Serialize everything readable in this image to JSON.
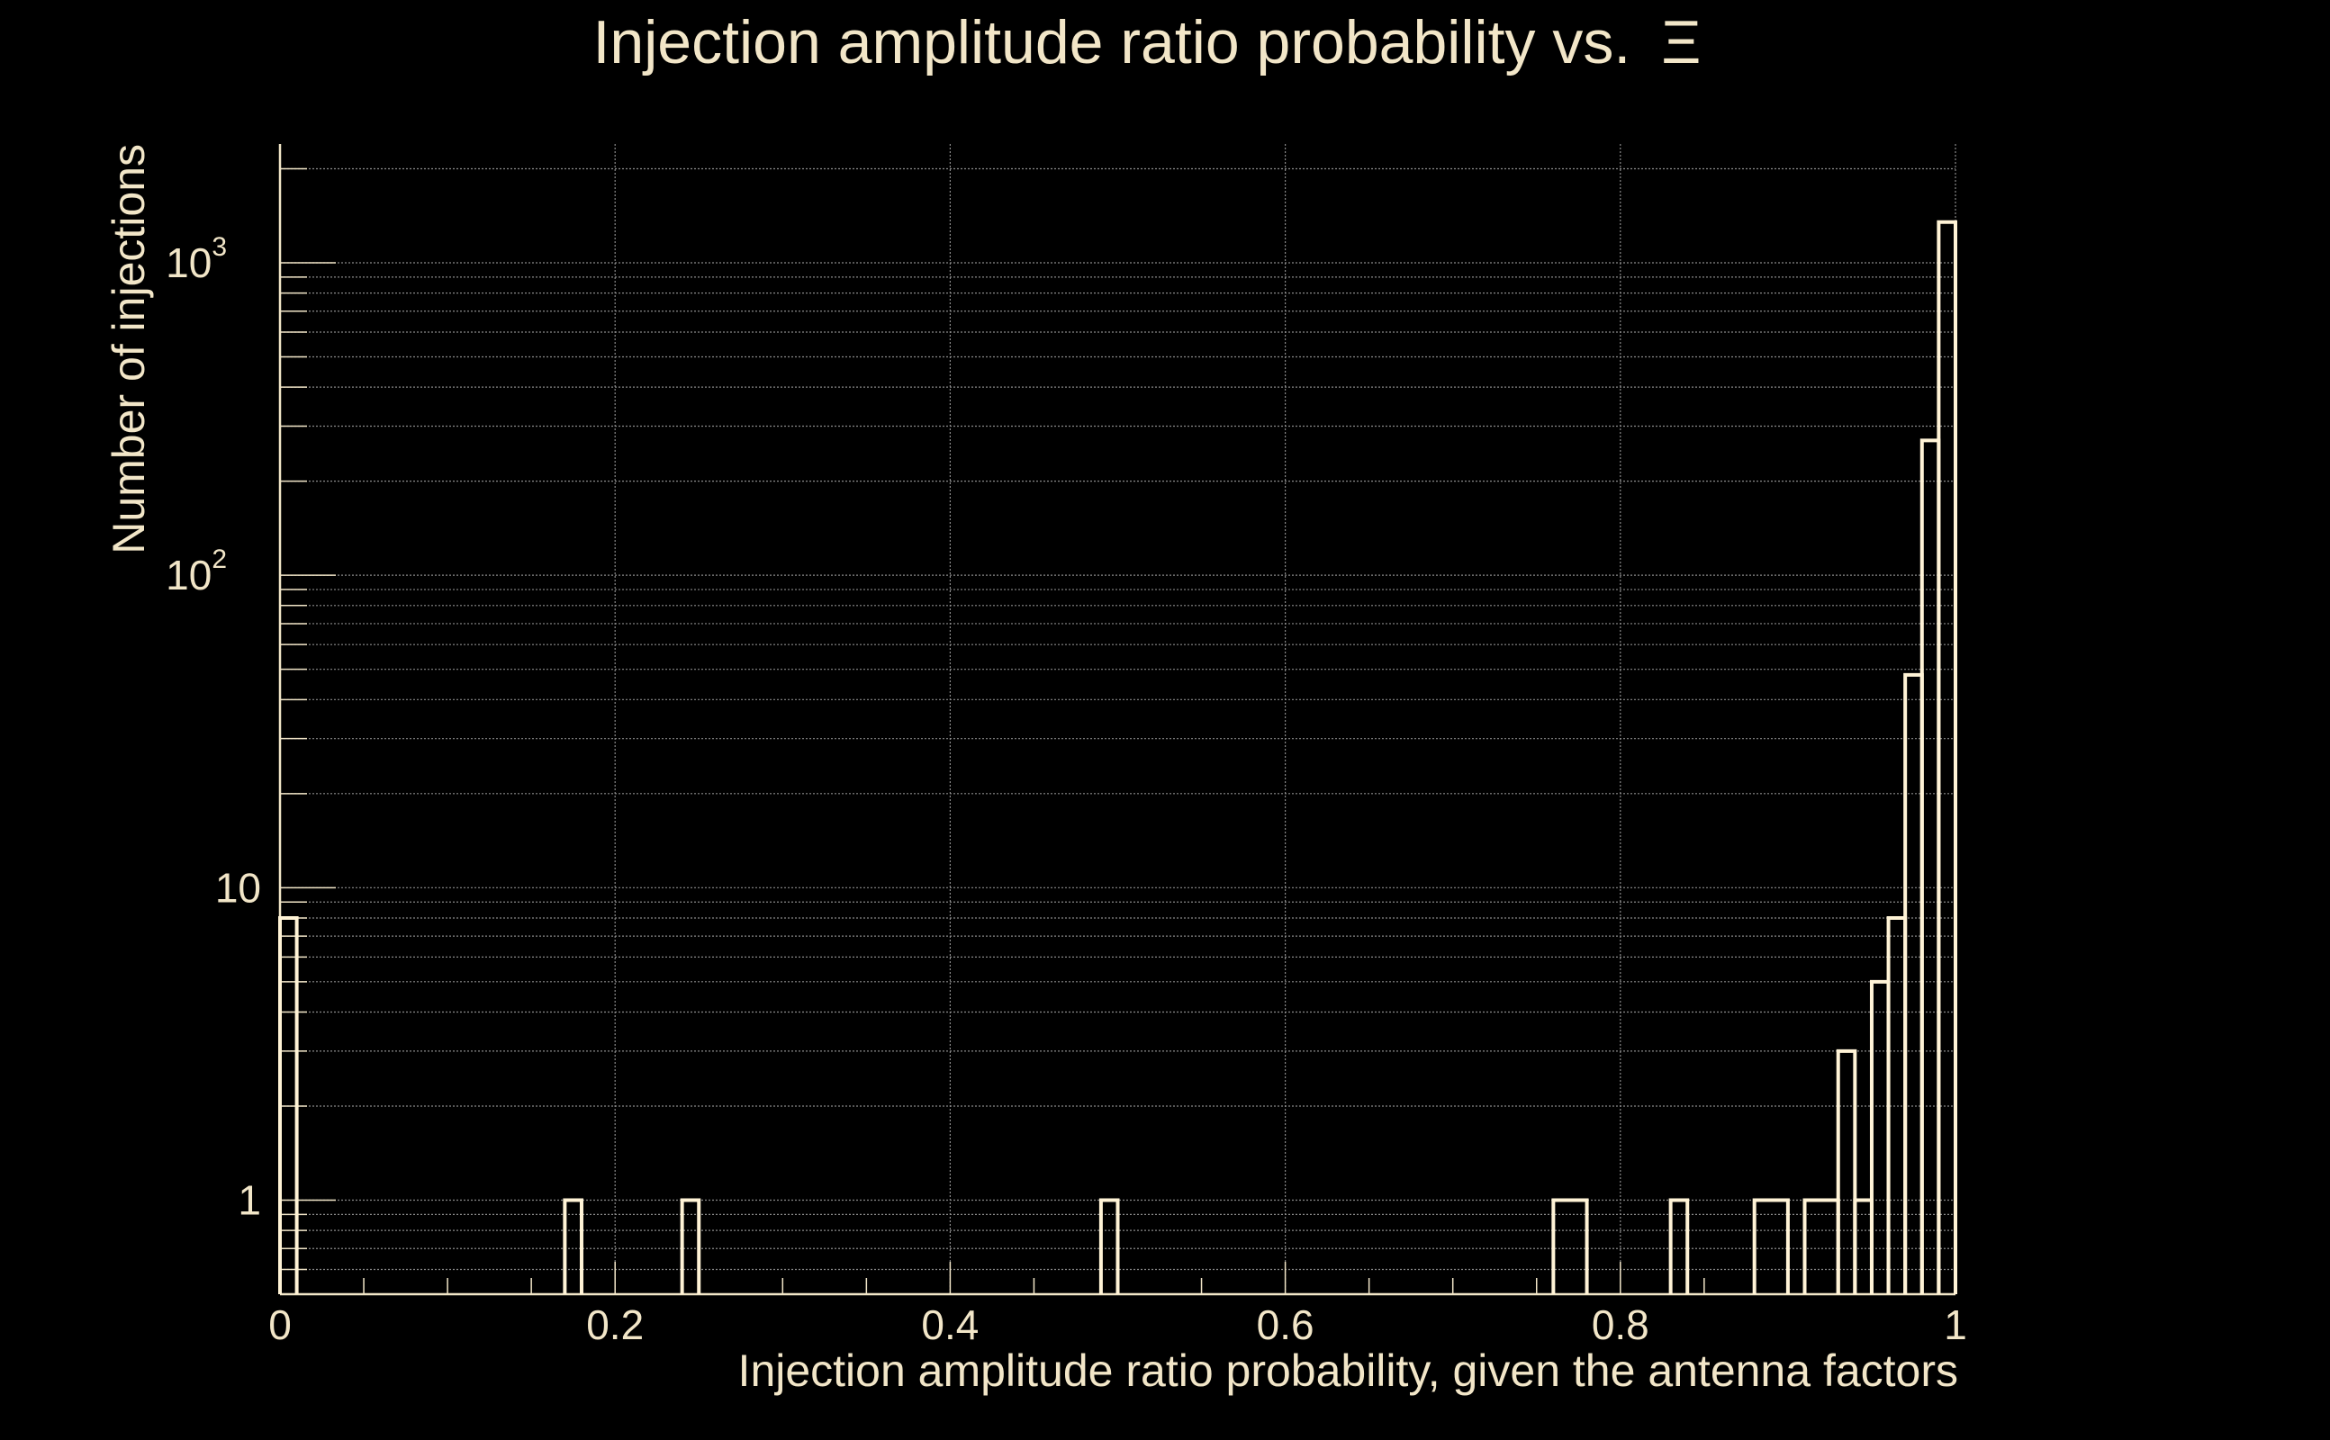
{
  "chart_data": {
    "type": "histogram",
    "title": "Injection amplitude ratio probability vs.",
    "title_symbol": "Ξ",
    "xlabel": "Injection amplitude ratio probability, given the antenna factors",
    "ylabel": "Number of injections",
    "xlim": [
      0,
      1
    ],
    "ylim": [
      0.5,
      2400
    ],
    "yscale": "log",
    "grid": true,
    "x_ticks": [
      {
        "value": 0,
        "label": "0"
      },
      {
        "value": 0.2,
        "label": "0.2"
      },
      {
        "value": 0.4,
        "label": "0.4"
      },
      {
        "value": 0.6,
        "label": "0.6"
      },
      {
        "value": 0.8,
        "label": "0.8"
      },
      {
        "value": 1,
        "label": "1"
      }
    ],
    "y_ticks": [
      {
        "value": 1,
        "base": "1",
        "sup": ""
      },
      {
        "value": 10,
        "base": "10",
        "sup": ""
      },
      {
        "value": 100,
        "base": "10",
        "sup": "2"
      },
      {
        "value": 1000,
        "base": "10",
        "sup": "3"
      }
    ],
    "bins": [
      {
        "x0": 0.0,
        "x1": 0.01,
        "count": 8
      },
      {
        "x0": 0.17,
        "x1": 0.18,
        "count": 1
      },
      {
        "x0": 0.24,
        "x1": 0.25,
        "count": 1
      },
      {
        "x0": 0.49,
        "x1": 0.5,
        "count": 1
      },
      {
        "x0": 0.76,
        "x1": 0.78,
        "count": 1
      },
      {
        "x0": 0.83,
        "x1": 0.84,
        "count": 1
      },
      {
        "x0": 0.88,
        "x1": 0.9,
        "count": 1
      },
      {
        "x0": 0.91,
        "x1": 0.93,
        "count": 1
      },
      {
        "x0": 0.93,
        "x1": 0.94,
        "count": 3
      },
      {
        "x0": 0.94,
        "x1": 0.95,
        "count": 1
      },
      {
        "x0": 0.95,
        "x1": 0.96,
        "count": 5
      },
      {
        "x0": 0.96,
        "x1": 0.97,
        "count": 8
      },
      {
        "x0": 0.97,
        "x1": 0.98,
        "count": 48
      },
      {
        "x0": 0.98,
        "x1": 0.99,
        "count": 270
      },
      {
        "x0": 0.99,
        "x1": 1.0,
        "count": 1350
      }
    ],
    "colors": {
      "background": "#000000",
      "foreground": "#f2e6c8",
      "grid": "#8a8a8a",
      "line": "#fff3d6"
    }
  }
}
